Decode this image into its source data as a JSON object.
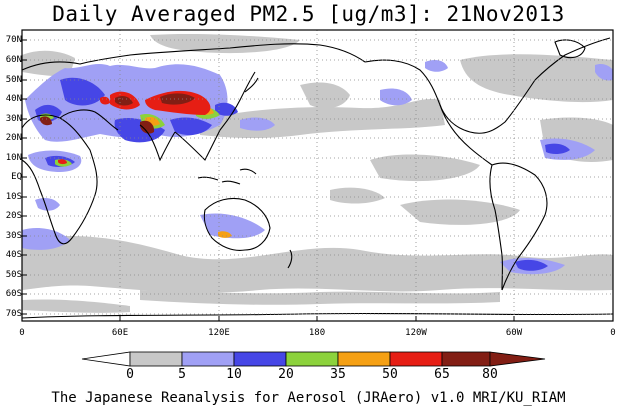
{
  "title": "Daily Averaged PM2.5 [ug/m3]: 21Nov2013",
  "footer": "The Japanese Reanalysis for Aerosol (JRAero) v1.0 MRI/KU_RIAM",
  "lat_labels": [
    "70N",
    "60N",
    "50N",
    "40N",
    "30N",
    "20N",
    "10N",
    "EQ",
    "10S",
    "20S",
    "30S",
    "40S",
    "50S",
    "60S",
    "70S"
  ],
  "lon_labels": [
    "0",
    "60E",
    "120E",
    "180",
    "120W",
    "60W",
    "0"
  ],
  "colorbar": {
    "labels": [
      "0",
      "5",
      "10",
      "20",
      "35",
      "50",
      "65",
      "80"
    ],
    "colors": [
      "#ffffff",
      "#c8c8c8",
      "#a0a0f5",
      "#4646e6",
      "#8cd23c",
      "#f5a014",
      "#e61e14",
      "#821e14"
    ]
  }
}
